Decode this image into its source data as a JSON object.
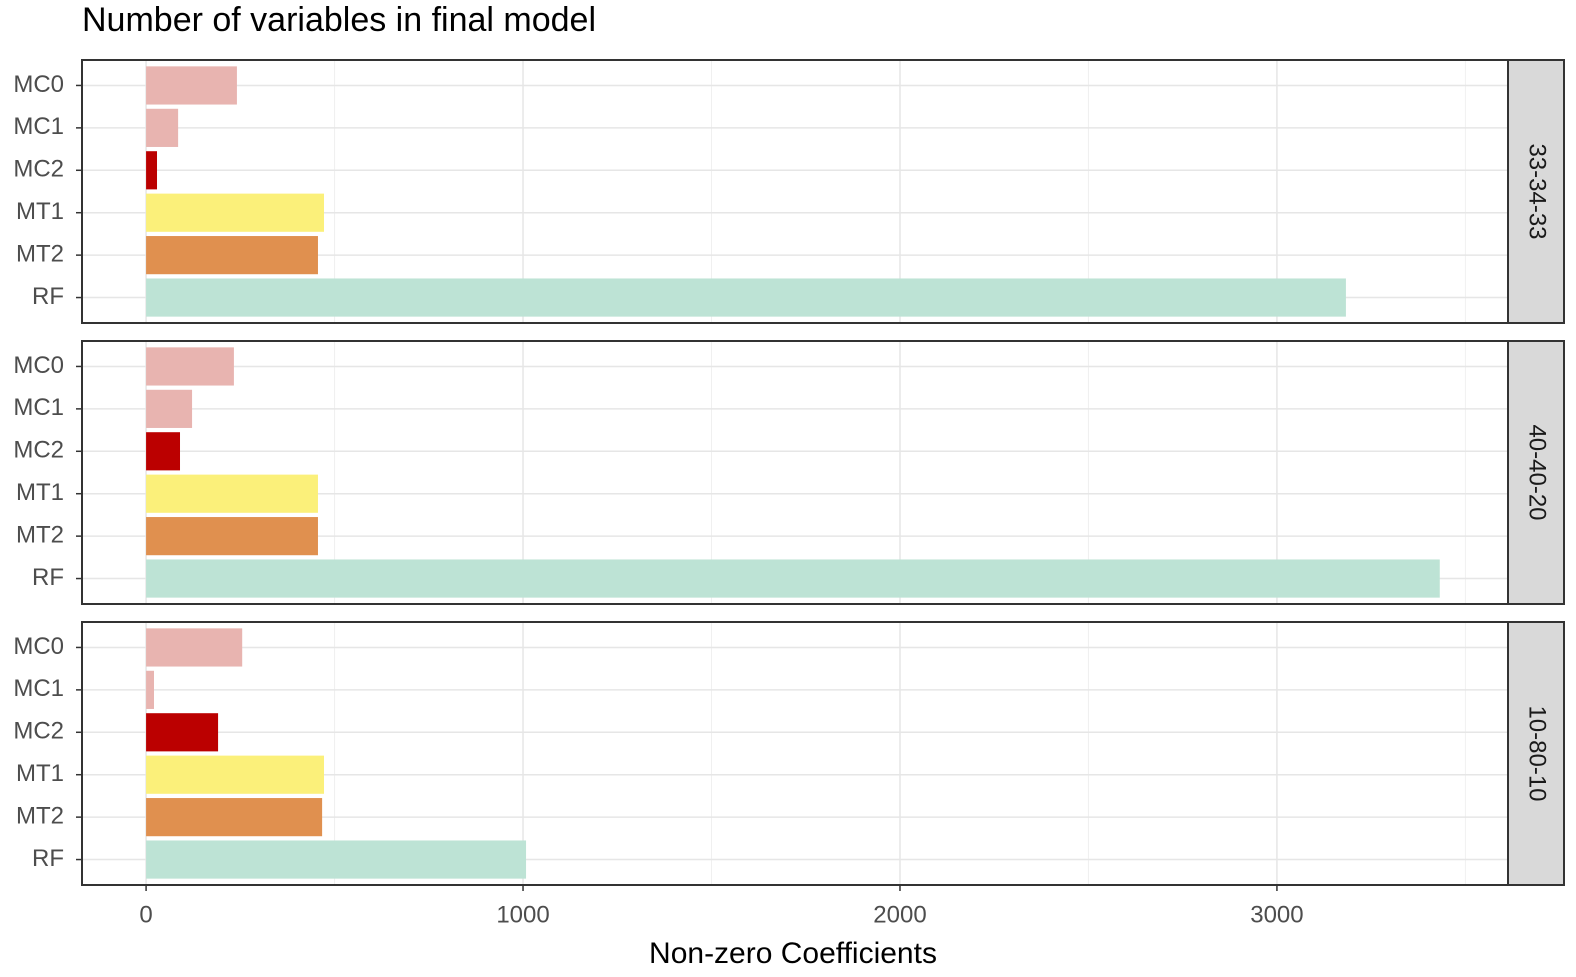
{
  "chart_data": {
    "type": "bar",
    "orientation": "horizontal",
    "title": "Number of variables in final model",
    "x_label": "Non-zero Coefficients",
    "categories": [
      "MC0",
      "MC1",
      "MC2",
      "MT1",
      "MT2",
      "RF"
    ],
    "colors": [
      "#e8b4b0",
      "#e8b4b0",
      "#bb0000",
      "#fbf07a",
      "#e0904f",
      "#bde3d5"
    ],
    "xlim": [
      -170,
      3613
    ],
    "xticks": [
      0,
      1000,
      2000,
      3000
    ],
    "xminor_ticks": [
      500,
      1500,
      2500,
      3500
    ],
    "grid": true,
    "panels": [
      {
        "label": "33-34-33",
        "values": [
          241,
          85,
          29,
          472,
          456,
          3183
        ]
      },
      {
        "label": "40-40-20",
        "values": [
          233,
          122,
          90,
          456,
          456,
          3432
        ]
      },
      {
        "label": "10-80-10",
        "values": [
          255,
          21,
          191,
          472,
          467,
          1008
        ]
      }
    ]
  }
}
